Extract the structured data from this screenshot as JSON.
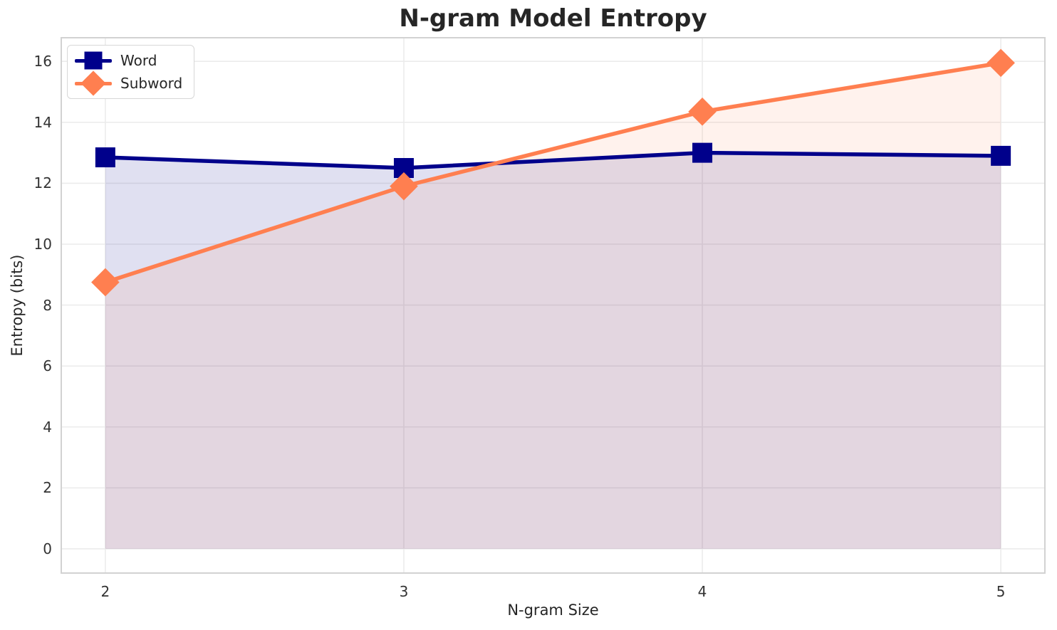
{
  "title": "N-gram Model Entropy",
  "axes": {
    "xlabel": "N-gram Size",
    "ylabel": "Entropy (bits)",
    "x_tick_labels": [
      "2",
      "3",
      "4",
      "5"
    ],
    "y_tick_labels": [
      "0",
      "2",
      "4",
      "6",
      "8",
      "10",
      "12",
      "14",
      "16"
    ]
  },
  "legend": {
    "position": "upper left",
    "items": [
      {
        "label": "Word",
        "color": "#00008B",
        "marker": "square"
      },
      {
        "label": "Subword",
        "color": "#FF7F50",
        "marker": "diamond"
      }
    ]
  },
  "colors": {
    "background": "#ffffff",
    "grid": "#ececec",
    "spine": "#d2d2d2",
    "title_text": "#262626",
    "tick_text": "#333333",
    "word_series": "#00008B",
    "subword_series": "#FF7F50"
  },
  "chart_data": {
    "type": "line",
    "title": "N-gram Model Entropy",
    "xlabel": "N-gram Size",
    "ylabel": "Entropy (bits)",
    "x": [
      2,
      3,
      4,
      5
    ],
    "series": [
      {
        "name": "Word",
        "color": "#00008B",
        "marker": "square",
        "values": [
          12.85,
          12.5,
          13.0,
          12.9
        ],
        "fill_opacity": 0.12
      },
      {
        "name": "Subword",
        "color": "#FF7F50",
        "marker": "diamond",
        "values": [
          8.75,
          11.9,
          14.35,
          15.95
        ],
        "fill_opacity": 0.1
      }
    ],
    "x_ticks": [
      2,
      3,
      4,
      5
    ],
    "y_ticks": [
      0,
      2,
      4,
      6,
      8,
      10,
      12,
      14,
      16
    ],
    "xlim": [
      1.85,
      5.15
    ],
    "ylim": [
      -0.82,
      16.8
    ],
    "grid": true,
    "fill_baseline": 0,
    "line_width": 5.5,
    "marker_size": 28,
    "legend_position": "upper left"
  }
}
